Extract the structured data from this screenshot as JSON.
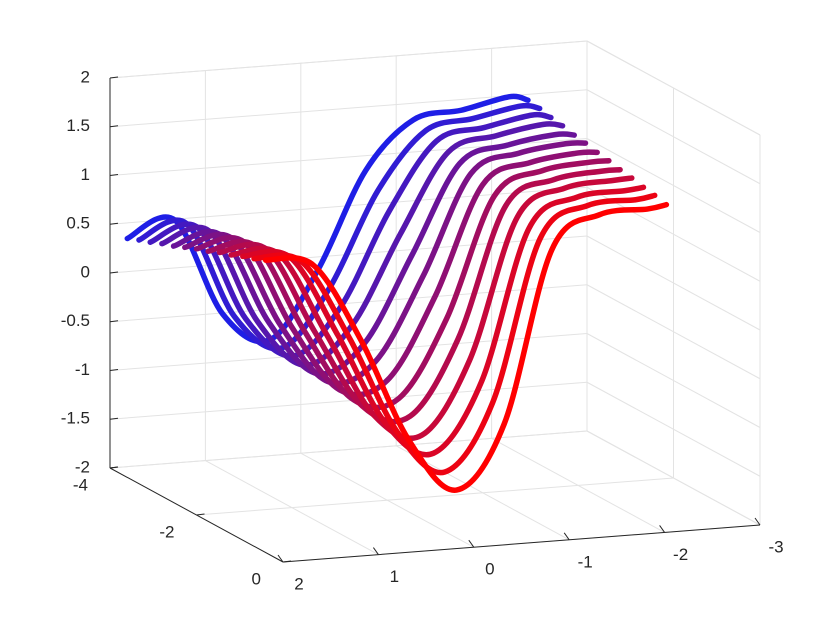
{
  "chart_data": {
    "type": "line3d",
    "xlim": [
      -3,
      2
    ],
    "ylim": [
      -4,
      0
    ],
    "zlim": [
      -2,
      2
    ],
    "xticks": [
      2,
      1,
      0,
      -1,
      -2,
      -3
    ],
    "yticks": [
      -4,
      -2,
      0
    ],
    "zticks": [
      -2,
      -1.5,
      -1,
      -0.5,
      0,
      0.5,
      1,
      1.5,
      2
    ],
    "grid": true,
    "x": [
      2,
      1.5,
      1,
      0.5,
      0,
      -0.5,
      -1,
      -1.5,
      -2,
      -2.2
    ],
    "series": [
      {
        "y": -3.6,
        "color": "#1e1ee6",
        "values": [
          0.45,
          0.6,
          -0.4,
          -0.7,
          -0.02,
          0.96,
          1.44,
          1.5,
          1.6,
          1.55
        ]
      },
      {
        "y": -3.33,
        "color": "#311cd3",
        "values": [
          0.5,
          0.63,
          -0.36,
          -0.72,
          -0.14,
          0.81,
          1.39,
          1.48,
          1.57,
          1.53
        ]
      },
      {
        "y": -3.07,
        "color": "#4419c0",
        "values": [
          0.54,
          0.65,
          -0.32,
          -0.74,
          -0.27,
          0.66,
          1.35,
          1.45,
          1.54,
          1.5
        ]
      },
      {
        "y": -2.8,
        "color": "#5617ad",
        "values": [
          0.59,
          0.68,
          -0.28,
          -0.77,
          -0.39,
          0.5,
          1.3,
          1.43,
          1.51,
          1.48
        ]
      },
      {
        "y": -2.53,
        "color": "#691499",
        "values": [
          0.63,
          0.7,
          -0.23,
          -0.79,
          -0.52,
          0.35,
          1.25,
          1.4,
          1.47,
          1.45
        ]
      },
      {
        "y": -2.27,
        "color": "#7c1286",
        "values": [
          0.68,
          0.73,
          -0.19,
          -0.81,
          -0.64,
          0.2,
          1.21,
          1.38,
          1.44,
          1.43
        ]
      },
      {
        "y": -2.0,
        "color": "#8f0f73",
        "values": [
          0.73,
          0.76,
          -0.15,
          -0.83,
          -0.77,
          0.05,
          1.16,
          1.35,
          1.41,
          1.4
        ]
      },
      {
        "y": -1.73,
        "color": "#a10d60",
        "values": [
          0.77,
          0.78,
          -0.11,
          -0.85,
          -0.89,
          -0.11,
          1.11,
          1.33,
          1.38,
          1.38
        ]
      },
      {
        "y": -1.47,
        "color": "#b40a4d",
        "values": [
          0.82,
          0.81,
          -0.07,
          -0.87,
          -1.01,
          -0.26,
          1.07,
          1.3,
          1.35,
          1.35
        ]
      },
      {
        "y": -1.2,
        "color": "#c7083a",
        "values": [
          0.86,
          0.83,
          -0.03,
          -0.9,
          -1.14,
          -0.41,
          1.02,
          1.28,
          1.32,
          1.33
        ]
      },
      {
        "y": -0.93,
        "color": "#da0526",
        "values": [
          0.91,
          0.86,
          0.02,
          -0.92,
          -1.26,
          -0.57,
          0.97,
          1.25,
          1.28,
          1.3
        ]
      },
      {
        "y": -0.67,
        "color": "#ec0313",
        "values": [
          0.95,
          0.88,
          0.06,
          -0.94,
          -1.39,
          -0.72,
          0.93,
          1.23,
          1.25,
          1.28
        ]
      },
      {
        "y": -0.4,
        "color": "#ff0000",
        "values": [
          1.0,
          0.91,
          0.1,
          -0.96,
          -1.51,
          -0.87,
          0.88,
          1.2,
          1.22,
          1.25
        ]
      }
    ]
  }
}
